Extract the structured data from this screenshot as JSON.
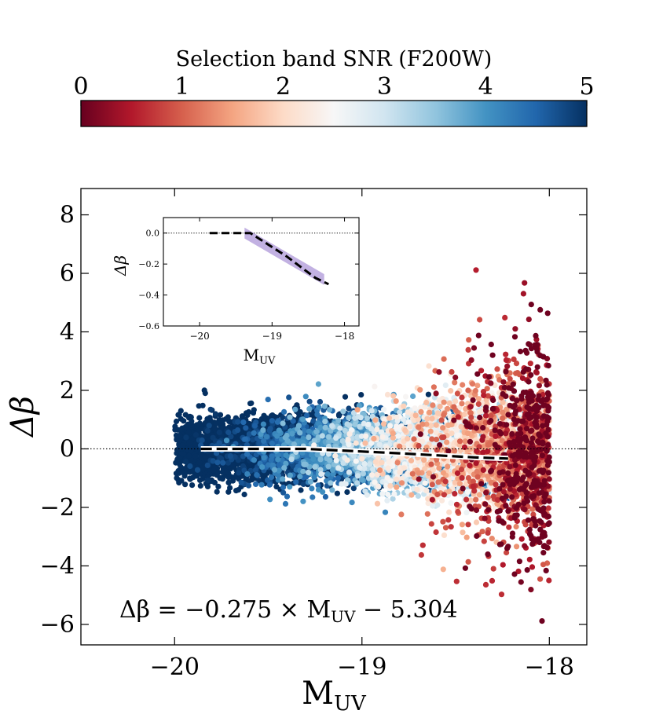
{
  "chart_data": {
    "type": "scatter",
    "colorbar": {
      "label": "Selection band SNR (F200W)",
      "min": 0,
      "max": 5,
      "ticks": [
        "0",
        "1",
        "2",
        "3",
        "4",
        "5"
      ],
      "colormap": "RdBu",
      "stops": [
        "#67001f",
        "#b2182b",
        "#d6604d",
        "#f4a582",
        "#fddbc7",
        "#f7f7f7",
        "#d1e5f0",
        "#92c5de",
        "#4393c3",
        "#2166ac",
        "#053061"
      ]
    },
    "main": {
      "xlabel_main": "M",
      "xlabel_sub": "UV",
      "ylabel": "Δβ",
      "xlim": [
        -20.5,
        -17.8
      ],
      "ylim": [
        -6.7,
        8.9
      ],
      "xticks": [
        -20,
        -19,
        -18
      ],
      "xtick_labels": [
        "−20",
        "−19",
        "−18"
      ],
      "yticks": [
        -6,
        -4,
        -2,
        0,
        2,
        4,
        6,
        8
      ],
      "ytick_labels": [
        "−6",
        "−4",
        "−2",
        "0",
        "2",
        "4",
        "6",
        "8"
      ],
      "reference_line_y": 0,
      "annotation": "Δβ = −0.275 × M_UV − 5.304",
      "annotation_parts": {
        "lhs": "Δβ = −0.275 × M",
        "sub": "UV",
        "rhs": " − 5.304"
      },
      "fit": {
        "slope": -0.275,
        "intercept": -5.304
      },
      "scatter_x_range": [
        -20.0,
        -18.0
      ],
      "median_curve": {
        "x": [
          -19.86,
          -19.6,
          -19.35,
          -19.3,
          -19.2,
          -19.0,
          -18.8,
          -18.6,
          -18.4,
          -18.22
        ],
        "y": [
          0.0,
          0.0,
          0.0,
          0.0,
          -0.03,
          -0.09,
          -0.15,
          -0.22,
          -0.29,
          -0.33
        ]
      }
    },
    "inset": {
      "xlabel_main": "M",
      "xlabel_sub": "UV",
      "ylabel": "Δβ",
      "xlim": [
        -20.5,
        -17.8
      ],
      "ylim": [
        -0.6,
        0.1
      ],
      "xticks": [
        -20,
        -19,
        -18
      ],
      "xtick_labels": [
        "−20",
        "−19",
        "−18"
      ],
      "yticks": [
        0.0,
        -0.2,
        -0.4,
        -0.6
      ],
      "ytick_labels": [
        "0.0",
        "−0.2",
        "−0.4",
        "−0.6"
      ],
      "reference_line_y": 0,
      "median_curve": {
        "x": [
          -19.86,
          -19.6,
          -19.35,
          -19.3,
          -19.2,
          -19.0,
          -18.8,
          -18.6,
          -18.4,
          -18.22
        ],
        "y": [
          0.0,
          0.0,
          0.0,
          0.0,
          -0.03,
          -0.09,
          -0.15,
          -0.22,
          -0.29,
          -0.33
        ]
      },
      "fit_band": {
        "x": [
          -19.38,
          -18.28
        ],
        "center": [
          0.0,
          -0.3
        ],
        "halfwidth": 0.035,
        "color": "#b39ddb"
      }
    }
  }
}
